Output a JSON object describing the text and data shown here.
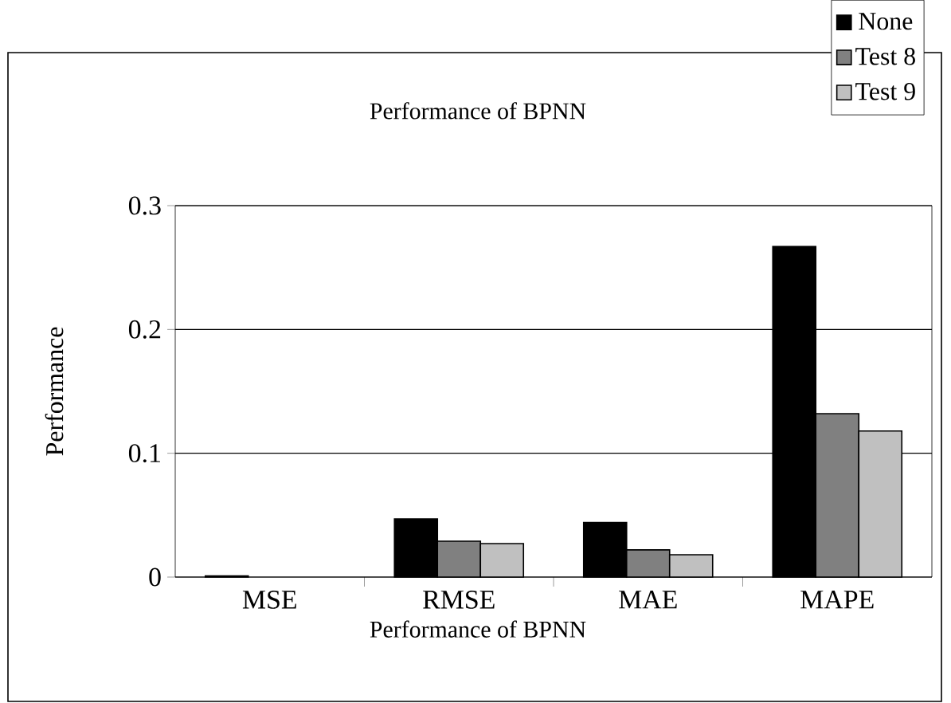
{
  "chart_data": {
    "type": "bar",
    "title": "Performance of BPNN",
    "xlabel": "Performance of BPNN",
    "ylabel": "Performance",
    "categories": [
      "MSE",
      "RMSE",
      "MAE",
      "MAPE"
    ],
    "series": [
      {
        "name": "None",
        "color": "#000000",
        "values": [
          0.001,
          0.047,
          0.044,
          0.267
        ]
      },
      {
        "name": "Test 8",
        "color": "#808080",
        "values": [
          null,
          0.029,
          0.022,
          0.132
        ]
      },
      {
        "name": "Test 9",
        "color": "#c0c0c0",
        "values": [
          null,
          0.027,
          0.018,
          0.118
        ]
      }
    ],
    "ylim": [
      0,
      0.3
    ],
    "yticks": [
      0,
      0.1,
      0.2,
      0.3
    ],
    "grid": "y",
    "legend": "top right"
  }
}
